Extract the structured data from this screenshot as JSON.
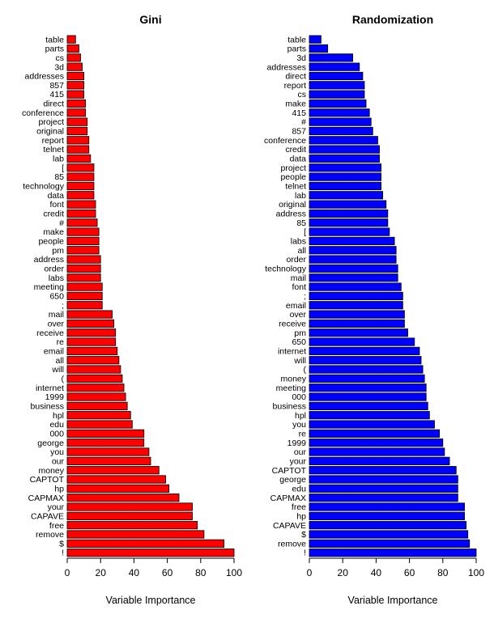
{
  "chart_data": [
    {
      "type": "bar",
      "orientation": "horizontal",
      "title": "Gini",
      "xlabel": "Variable Importance",
      "ylabel": "",
      "xlim": [
        0,
        100
      ],
      "xticks": [
        "0",
        "20",
        "40",
        "60",
        "80",
        "100"
      ],
      "bar_color": "#ff0000",
      "categories": [
        "table",
        "parts",
        "cs",
        "3d",
        "addresses",
        "857",
        "415",
        "direct",
        "conference",
        "project",
        "original",
        "report",
        "telnet",
        "lab",
        "[",
        "85",
        "technology",
        "data",
        "font",
        "credit",
        "#",
        "make",
        "people",
        "pm",
        "address",
        "order",
        "labs",
        "meeting",
        "650",
        ";",
        "mail",
        "over",
        "receive",
        "re",
        "email",
        "all",
        "will",
        "(",
        "internet",
        "1999",
        "business",
        "hpl",
        "edu",
        "000",
        "george",
        "you",
        "our",
        "money",
        "CAPTOT",
        "hp",
        "CAPMAX",
        "your",
        "CAPAVE",
        "free",
        "remove",
        "$",
        "!"
      ],
      "values": [
        5,
        7,
        8,
        9,
        10,
        10,
        10,
        11,
        11,
        12,
        12,
        13,
        13,
        14,
        16,
        16,
        16,
        16,
        17,
        17,
        18,
        19,
        19,
        19,
        20,
        20,
        20,
        21,
        21,
        21,
        27,
        28,
        29,
        29,
        30,
        31,
        32,
        33,
        34,
        35,
        36,
        38,
        39,
        46,
        46,
        49,
        50,
        55,
        59,
        61,
        67,
        75,
        75,
        78,
        82,
        94,
        100
      ]
    },
    {
      "type": "bar",
      "orientation": "horizontal",
      "title": "Randomization",
      "xlabel": "Variable Importance",
      "ylabel": "",
      "xlim": [
        0,
        100
      ],
      "xticks": [
        "0",
        "20",
        "40",
        "60",
        "80",
        "100"
      ],
      "bar_color": "#0000ff",
      "categories": [
        "table",
        "parts",
        "3d",
        "addresses",
        "direct",
        "report",
        "cs",
        "make",
        "415",
        "#",
        "857",
        "conference",
        "credit",
        "data",
        "project",
        "people",
        "telnet",
        "lab",
        "original",
        "address",
        "85",
        "[",
        "labs",
        "all",
        "order",
        "technology",
        "mail",
        "font",
        ";",
        "email",
        "over",
        "receive",
        "pm",
        "650",
        "internet",
        "will",
        "(",
        "money",
        "meeting",
        "000",
        "business",
        "hpl",
        "you",
        "re",
        "1999",
        "our",
        "your",
        "CAPTOT",
        "george",
        "edu",
        "CAPMAX",
        "free",
        "hp",
        "CAPAVE",
        "$",
        "remove",
        "!"
      ],
      "values": [
        7,
        11,
        26,
        30,
        32,
        33,
        33,
        34,
        36,
        37,
        38,
        41,
        42,
        42,
        43,
        43,
        43,
        44,
        46,
        47,
        47,
        48,
        51,
        52,
        52,
        53,
        53,
        55,
        56,
        56,
        57,
        57,
        59,
        63,
        66,
        67,
        68,
        69,
        70,
        70,
        71,
        72,
        75,
        78,
        80,
        81,
        84,
        88,
        89,
        89,
        89,
        93,
        93,
        94,
        95,
        96,
        100
      ]
    }
  ]
}
